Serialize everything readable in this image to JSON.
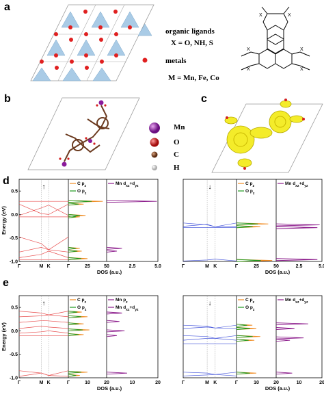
{
  "panels": {
    "a": {
      "label": "a",
      "legend_ligands": "organic ligands",
      "legend_x": "X = O, NH, S",
      "legend_metals": "metals",
      "legend_m": "M = Mn, Fe, Co",
      "mol_x_label": "X"
    },
    "b": {
      "label": "b",
      "atoms": [
        {
          "symbol": "Mn",
          "color": "#8b1a9b"
        },
        {
          "symbol": "O",
          "color": "#d42020"
        },
        {
          "symbol": "C",
          "color": "#7a3a20"
        },
        {
          "symbol": "H",
          "color": "#c9c9c9"
        }
      ]
    },
    "c": {
      "label": "c"
    },
    "d": {
      "label": "d"
    },
    "e": {
      "label": "e"
    }
  },
  "plots": {
    "ylabel": "Energy (eV)",
    "dos_xlabel": "DOS (a.u.)",
    "kpath": [
      "Γ",
      "M",
      "K",
      "Γ"
    ],
    "spin_up": "↑",
    "spin_down": "↓",
    "colors": {
      "up": "#e85050",
      "down": "#4a5adc",
      "C": "#f08a20",
      "O": "#1e9a1e",
      "X": "#1e9a1e",
      "Mn": "#8b1a8b"
    }
  },
  "chart_data": [
    {
      "panel": "d-up",
      "type": "line",
      "ylim": [
        -1.0,
        0.75
      ],
      "yticks": [
        0.5,
        0.0,
        -0.5,
        -1.0
      ],
      "ytick_labels": [
        "0.5",
        "0.0",
        "-0.5",
        "-1.0"
      ],
      "dos1_ticks": [
        "0",
        "25",
        "50"
      ],
      "dos2_ticks": [
        "2.5",
        "5.0"
      ],
      "legend": [
        "C p$z",
        "O p$z",
        "Mn d$xz+d$yz"
      ]
    },
    {
      "panel": "d-down",
      "type": "line",
      "ylim": [
        -1.0,
        0.75
      ],
      "dos1_ticks": [
        "0",
        "25",
        "50"
      ],
      "dos2_ticks": [
        "2.5",
        "5.0"
      ],
      "legend": [
        "C p$z",
        "O p$z",
        "Mn d$xz+d$yz"
      ]
    },
    {
      "panel": "e-up",
      "type": "line",
      "ylim": [
        -1.0,
        0.75
      ],
      "yticks": [
        0.5,
        0.0,
        -0.5,
        -1.0
      ],
      "ytick_labels": [
        "0.5",
        "0.0",
        "-0.5",
        "-1.0"
      ],
      "dos1_ticks": [
        "0",
        "10",
        "20"
      ],
      "dos2_ticks": [
        "0",
        "10",
        "20"
      ],
      "legend": [
        "C p$z",
        "O p$z",
        "Mn p$z",
        "Mn d$xz+d$yz"
      ]
    },
    {
      "panel": "e-down",
      "type": "line",
      "ylim": [
        -1.0,
        0.75
      ],
      "dos1_ticks": [
        "0",
        "10",
        "20"
      ],
      "dos2_ticks": [
        "0",
        "10",
        "20"
      ],
      "legend": [
        "C p$z",
        "O p$z",
        "Mn d$xz+d$yz"
      ]
    }
  ]
}
